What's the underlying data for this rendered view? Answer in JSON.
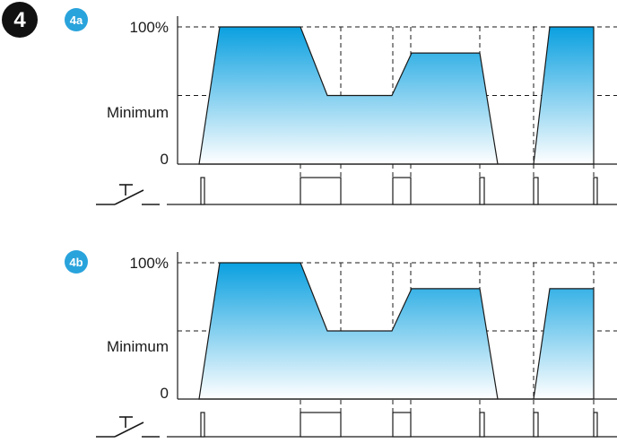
{
  "step_number": "4",
  "colors": {
    "fill_top": "#0aa0e0",
    "fill_bottom": "#ffffff",
    "badge_small": "#29a3dc",
    "ink": "#1a1a1a"
  },
  "panels": [
    {
      "id": "4a",
      "badge": "4a",
      "labels": {
        "max": "100%",
        "min": "Minimum",
        "zero": "0"
      },
      "levels": {
        "max": 100,
        "min": 50,
        "zero": 0
      },
      "profile": [
        [
          222,
          0
        ],
        [
          245,
          100
        ],
        [
          335,
          100
        ],
        [
          365,
          50
        ],
        [
          437,
          50
        ],
        [
          459,
          81
        ],
        [
          535,
          81
        ],
        [
          555,
          0
        ],
        [
          595,
          0
        ],
        [
          613,
          100
        ],
        [
          662,
          100
        ],
        [
          662,
          0
        ]
      ],
      "pulses": [
        [
          224,
          228
        ],
        [
          335,
          380
        ],
        [
          438,
          458
        ],
        [
          535,
          540
        ],
        [
          595,
          600
        ],
        [
          662,
          666
        ]
      ],
      "dashed_verticals": [
        335,
        380,
        438,
        458,
        535,
        595,
        662
      ]
    },
    {
      "id": "4b",
      "badge": "4b",
      "labels": {
        "max": "100%",
        "min": "Minimum",
        "zero": "0"
      },
      "levels": {
        "max": 100,
        "min": 50,
        "zero": 0
      },
      "profile": [
        [
          222,
          0
        ],
        [
          245,
          100
        ],
        [
          335,
          100
        ],
        [
          365,
          50
        ],
        [
          437,
          50
        ],
        [
          459,
          81
        ],
        [
          535,
          81
        ],
        [
          555,
          0
        ],
        [
          595,
          0
        ],
        [
          613,
          81
        ],
        [
          662,
          81
        ],
        [
          662,
          0
        ]
      ],
      "pulses": [
        [
          224,
          228
        ],
        [
          335,
          380
        ],
        [
          438,
          458
        ],
        [
          535,
          540
        ],
        [
          595,
          600
        ],
        [
          662,
          666
        ]
      ],
      "dashed_verticals": [
        335,
        380,
        438,
        458,
        535,
        595,
        662
      ]
    }
  ]
}
